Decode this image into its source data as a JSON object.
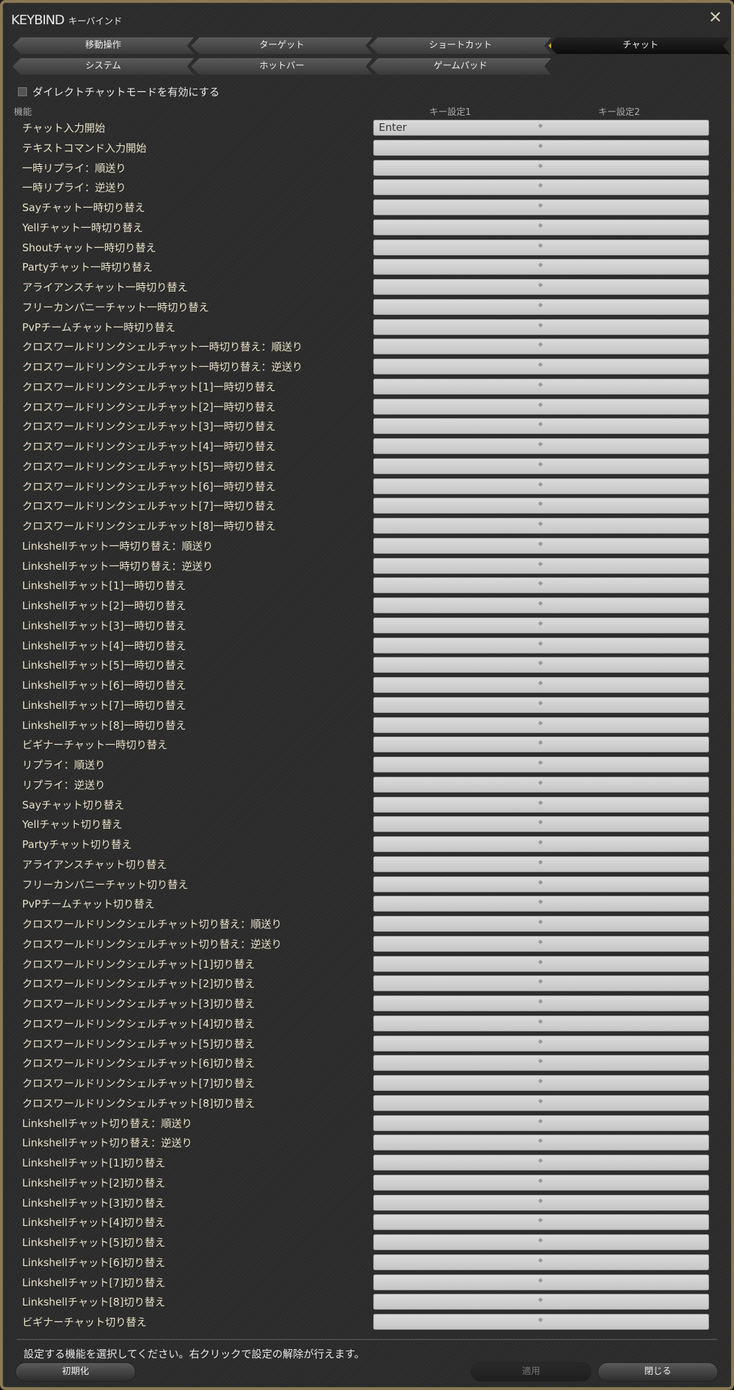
{
  "window": {
    "title": "KEYBIND",
    "subtitle": "キーバインド",
    "close_icon": "close-x-icon"
  },
  "tabs": [
    {
      "label": "移動操作"
    },
    {
      "label": "ターゲット"
    },
    {
      "label": "ショートカット"
    },
    {
      "label": "チャット",
      "active": true
    },
    {
      "label": "システム"
    },
    {
      "label": "ホットバー"
    },
    {
      "label": "ゲームパッド"
    }
  ],
  "direct_chat": {
    "label": "ダイレクトチャットモードを有効にする",
    "checked": false
  },
  "columns": {
    "function": "機能",
    "key1": "キー設定1",
    "key2": "キー設定2"
  },
  "rows": [
    {
      "label": "チャット入力開始",
      "key1": "Enter"
    },
    {
      "label": "テキストコマンド入力開始"
    },
    {
      "label": "一時リプライ：順送り"
    },
    {
      "label": "一時リプライ：逆送り"
    },
    {
      "label": "Sayチャット一時切り替え"
    },
    {
      "label": "Yellチャット一時切り替え"
    },
    {
      "label": "Shoutチャット一時切り替え"
    },
    {
      "label": "Partyチャット一時切り替え"
    },
    {
      "label": "アライアンスチャット一時切り替え"
    },
    {
      "label": "フリーカンパニーチャット一時切り替え"
    },
    {
      "label": "PvPチームチャット一時切り替え"
    },
    {
      "label": "クロスワールドリンクシェルチャット一時切り替え：順送り"
    },
    {
      "label": "クロスワールドリンクシェルチャット一時切り替え：逆送り"
    },
    {
      "label": "クロスワールドリンクシェルチャット[1]一時切り替え"
    },
    {
      "label": "クロスワールドリンクシェルチャット[2]一時切り替え"
    },
    {
      "label": "クロスワールドリンクシェルチャット[3]一時切り替え"
    },
    {
      "label": "クロスワールドリンクシェルチャット[4]一時切り替え"
    },
    {
      "label": "クロスワールドリンクシェルチャット[5]一時切り替え"
    },
    {
      "label": "クロスワールドリンクシェルチャット[6]一時切り替え"
    },
    {
      "label": "クロスワールドリンクシェルチャット[7]一時切り替え"
    },
    {
      "label": "クロスワールドリンクシェルチャット[8]一時切り替え"
    },
    {
      "label": "Linkshellチャット一時切り替え：順送り"
    },
    {
      "label": "Linkshellチャット一時切り替え：逆送り"
    },
    {
      "label": "Linkshellチャット[1]一時切り替え"
    },
    {
      "label": "Linkshellチャット[2]一時切り替え"
    },
    {
      "label": "Linkshellチャット[3]一時切り替え"
    },
    {
      "label": "Linkshellチャット[4]一時切り替え"
    },
    {
      "label": "Linkshellチャット[5]一時切り替え"
    },
    {
      "label": "Linkshellチャット[6]一時切り替え"
    },
    {
      "label": "Linkshellチャット[7]一時切り替え"
    },
    {
      "label": "Linkshellチャット[8]一時切り替え"
    },
    {
      "label": "ビギナーチャット一時切り替え"
    },
    {
      "label": "リプライ：順送り"
    },
    {
      "label": "リプライ：逆送り"
    },
    {
      "label": "Sayチャット切り替え"
    },
    {
      "label": "Yellチャット切り替え"
    },
    {
      "label": "Partyチャット切り替え"
    },
    {
      "label": "アライアンスチャット切り替え"
    },
    {
      "label": "フリーカンパニーチャット切り替え"
    },
    {
      "label": "PvPチームチャット切り替え"
    },
    {
      "label": "クロスワールドリンクシェルチャット切り替え：順送り"
    },
    {
      "label": "クロスワールドリンクシェルチャット切り替え：逆送り"
    },
    {
      "label": "クロスワールドリンクシェルチャット[1]切り替え"
    },
    {
      "label": "クロスワールドリンクシェルチャット[2]切り替え"
    },
    {
      "label": "クロスワールドリンクシェルチャット[3]切り替え"
    },
    {
      "label": "クロスワールドリンクシェルチャット[4]切り替え"
    },
    {
      "label": "クロスワールドリンクシェルチャット[5]切り替え"
    },
    {
      "label": "クロスワールドリンクシェルチャット[6]切り替え"
    },
    {
      "label": "クロスワールドリンクシェルチャット[7]切り替え"
    },
    {
      "label": "クロスワールドリンクシェルチャット[8]切り替え"
    },
    {
      "label": "Linkshellチャット切り替え：順送り"
    },
    {
      "label": "Linkshellチャット切り替え：逆送り"
    },
    {
      "label": "Linkshellチャット[1]切り替え"
    },
    {
      "label": "Linkshellチャット[2]切り替え"
    },
    {
      "label": "Linkshellチャット[3]切り替え"
    },
    {
      "label": "Linkshellチャット[4]切り替え"
    },
    {
      "label": "Linkshellチャット[5]切り替え"
    },
    {
      "label": "Linkshellチャット[6]切り替え"
    },
    {
      "label": "Linkshellチャット[7]切り替え"
    },
    {
      "label": "Linkshellチャット[8]切り替え"
    },
    {
      "label": "ビギナーチャット切り替え"
    }
  ],
  "footer": {
    "message": "設定する機能を選択してください。右クリックで設定の解除が行えます。",
    "reset": "初期化",
    "apply": "適用",
    "close": "閉じる"
  },
  "colors": {
    "accent": "#d9a520",
    "frame": "#8a7a55"
  }
}
